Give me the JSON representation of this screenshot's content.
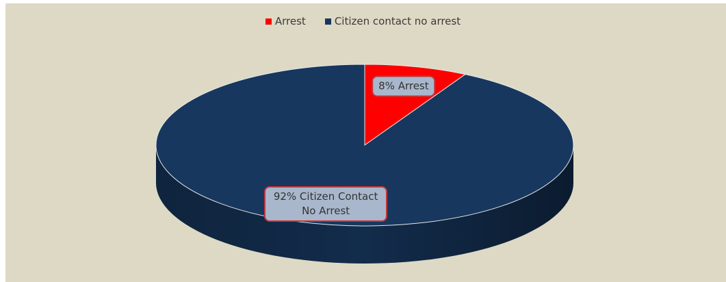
{
  "chart_data": {
    "type": "pie",
    "categories": [
      "Arrest",
      "Citizen contact no arrest"
    ],
    "values": [
      8,
      92
    ],
    "value_labels": [
      "8% Arrest",
      "92% Citizen Contact No Arrest"
    ],
    "colors": [
      "#ff0000",
      "#17375e"
    ],
    "legend": "top"
  }
}
